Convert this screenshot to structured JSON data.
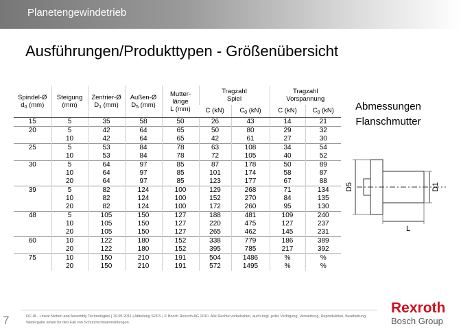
{
  "header": {
    "section": "Planetengewindetrieb",
    "title": "Ausführungen/Produkttypen - Größenübersicht"
  },
  "table": {
    "columns": [
      {
        "lines": [
          "Spindel-Ø"
        ],
        "symbol": "d",
        "index": "0",
        "unit": "(mm)"
      },
      {
        "lines": [
          "Steigung",
          "(mm)"
        ]
      },
      {
        "lines": [
          "Zentrier-Ø"
        ],
        "symbol": "D",
        "index": "1",
        "unit": "(mm)"
      },
      {
        "lines": [
          "Außen-Ø"
        ],
        "symbol": "D",
        "index": "5",
        "unit": "(mm)"
      },
      {
        "lines": [
          "Mutter-",
          "länge",
          "L (mm)"
        ]
      }
    ],
    "load_groups": [
      {
        "label": "Tragzahl",
        "sublabel": "Spiel",
        "columns": [
          {
            "symbol": "C",
            "unit": "(kN)"
          },
          {
            "symbol": "C",
            "index": "0",
            "unit": "(kN)"
          }
        ]
      },
      {
        "label": "Tragzahl",
        "sublabel": "Vorspannung",
        "columns": [
          {
            "symbol": "C",
            "unit": "(kN)"
          },
          {
            "symbol": "C",
            "index": "0",
            "unit": "(kN)"
          }
        ]
      }
    ],
    "rows": [
      [
        "15",
        "5",
        "35",
        "58",
        "50",
        "26",
        "43",
        "14",
        "21"
      ],
      [
        "20",
        "5",
        "42",
        "64",
        "65",
        "50",
        "80",
        "29",
        "32"
      ],
      [
        null,
        "10",
        "42",
        "64",
        "65",
        "42",
        "61",
        "27",
        "30"
      ],
      [
        "25",
        "5",
        "53",
        "84",
        "78",
        "63",
        "108",
        "34",
        "54"
      ],
      [
        null,
        "10",
        "53",
        "84",
        "78",
        "72",
        "105",
        "40",
        "52"
      ],
      [
        "30",
        "5",
        "64",
        "97",
        "85",
        "87",
        "178",
        "50",
        "89"
      ],
      [
        null,
        "10",
        "64",
        "97",
        "85",
        "101",
        "174",
        "58",
        "87"
      ],
      [
        null,
        "20",
        "64",
        "97",
        "85",
        "123",
        "177",
        "67",
        "88"
      ],
      [
        "39",
        "5",
        "82",
        "124",
        "100",
        "129",
        "268",
        "71",
        "134"
      ],
      [
        null,
        "10",
        "82",
        "124",
        "100",
        "152",
        "270",
        "84",
        "135"
      ],
      [
        null,
        "20",
        "82",
        "124",
        "100",
        "172",
        "260",
        "95",
        "130"
      ],
      [
        "48",
        "5",
        "105",
        "150",
        "127",
        "188",
        "481",
        "109",
        "240"
      ],
      [
        null,
        "10",
        "105",
        "150",
        "127",
        "220",
        "475",
        "127",
        "237"
      ],
      [
        null,
        "20",
        "105",
        "150",
        "127",
        "265",
        "462",
        "145",
        "231"
      ],
      [
        "60",
        "10",
        "122",
        "180",
        "152",
        "338",
        "779",
        "186",
        "389"
      ],
      [
        null,
        "20",
        "122",
        "180",
        "152",
        "395",
        "785",
        "217",
        "392"
      ],
      [
        "75",
        "10",
        "150",
        "210",
        "191",
        "504",
        "1486",
        "%",
        "%"
      ],
      [
        null,
        "20",
        "150",
        "210",
        "191",
        "572",
        "1495",
        "%",
        "%"
      ]
    ]
  },
  "drawing": {
    "title": [
      "Abmessungen",
      "Flanschmutter"
    ],
    "labels": {
      "d5": "D5",
      "d1": "D1",
      "length": "L"
    }
  },
  "footer": {
    "page": "7",
    "text": "DC-IA - Linear Motion and Assembly Technologies | 19.05.2011 | Abteilung SPFS | © Bosch Rexroth AG 2010. Alle Rechte vorbehalten, auch bzgl. jeder Verfügung, Verwertung, Reproduktion, Bearbeitung, Weitergabe sowie für den Fall von Schutzrechtsanmeldungen.",
    "brand": "Rexroth",
    "group": "Bosch Group"
  }
}
